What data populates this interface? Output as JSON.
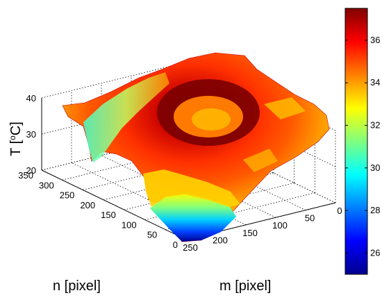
{
  "chart_data": {
    "type": "surface3d",
    "title": "",
    "xlabel": "m [pixel]",
    "ylabel": "n [pixel]",
    "zlabel_prefix": "T [",
    "zlabel_sup": "o",
    "zlabel_suffix": "C]",
    "xlim": [
      0,
      250
    ],
    "ylim": [
      0,
      350
    ],
    "zlim": [
      20,
      40
    ],
    "x_ticks": [
      "0",
      "50",
      "100",
      "150",
      "200",
      "250"
    ],
    "y_ticks": [
      "0",
      "50",
      "100",
      "150",
      "200",
      "250",
      "300",
      "350"
    ],
    "z_ticks": [
      "20",
      "30",
      "40"
    ],
    "colorbar": {
      "range": [
        25,
        37.5
      ],
      "ticks": [
        "26",
        "28",
        "30",
        "32",
        "34",
        "36"
      ],
      "colormap": "jet"
    },
    "grid": true,
    "colors": {
      "dark_red": "#800000",
      "red": "#ff2000",
      "orange": "#ff8000",
      "yellow": "#ffff00",
      "cyan": "#00ffff",
      "blue": "#0000ff",
      "dark_blue": "#00008f"
    }
  }
}
